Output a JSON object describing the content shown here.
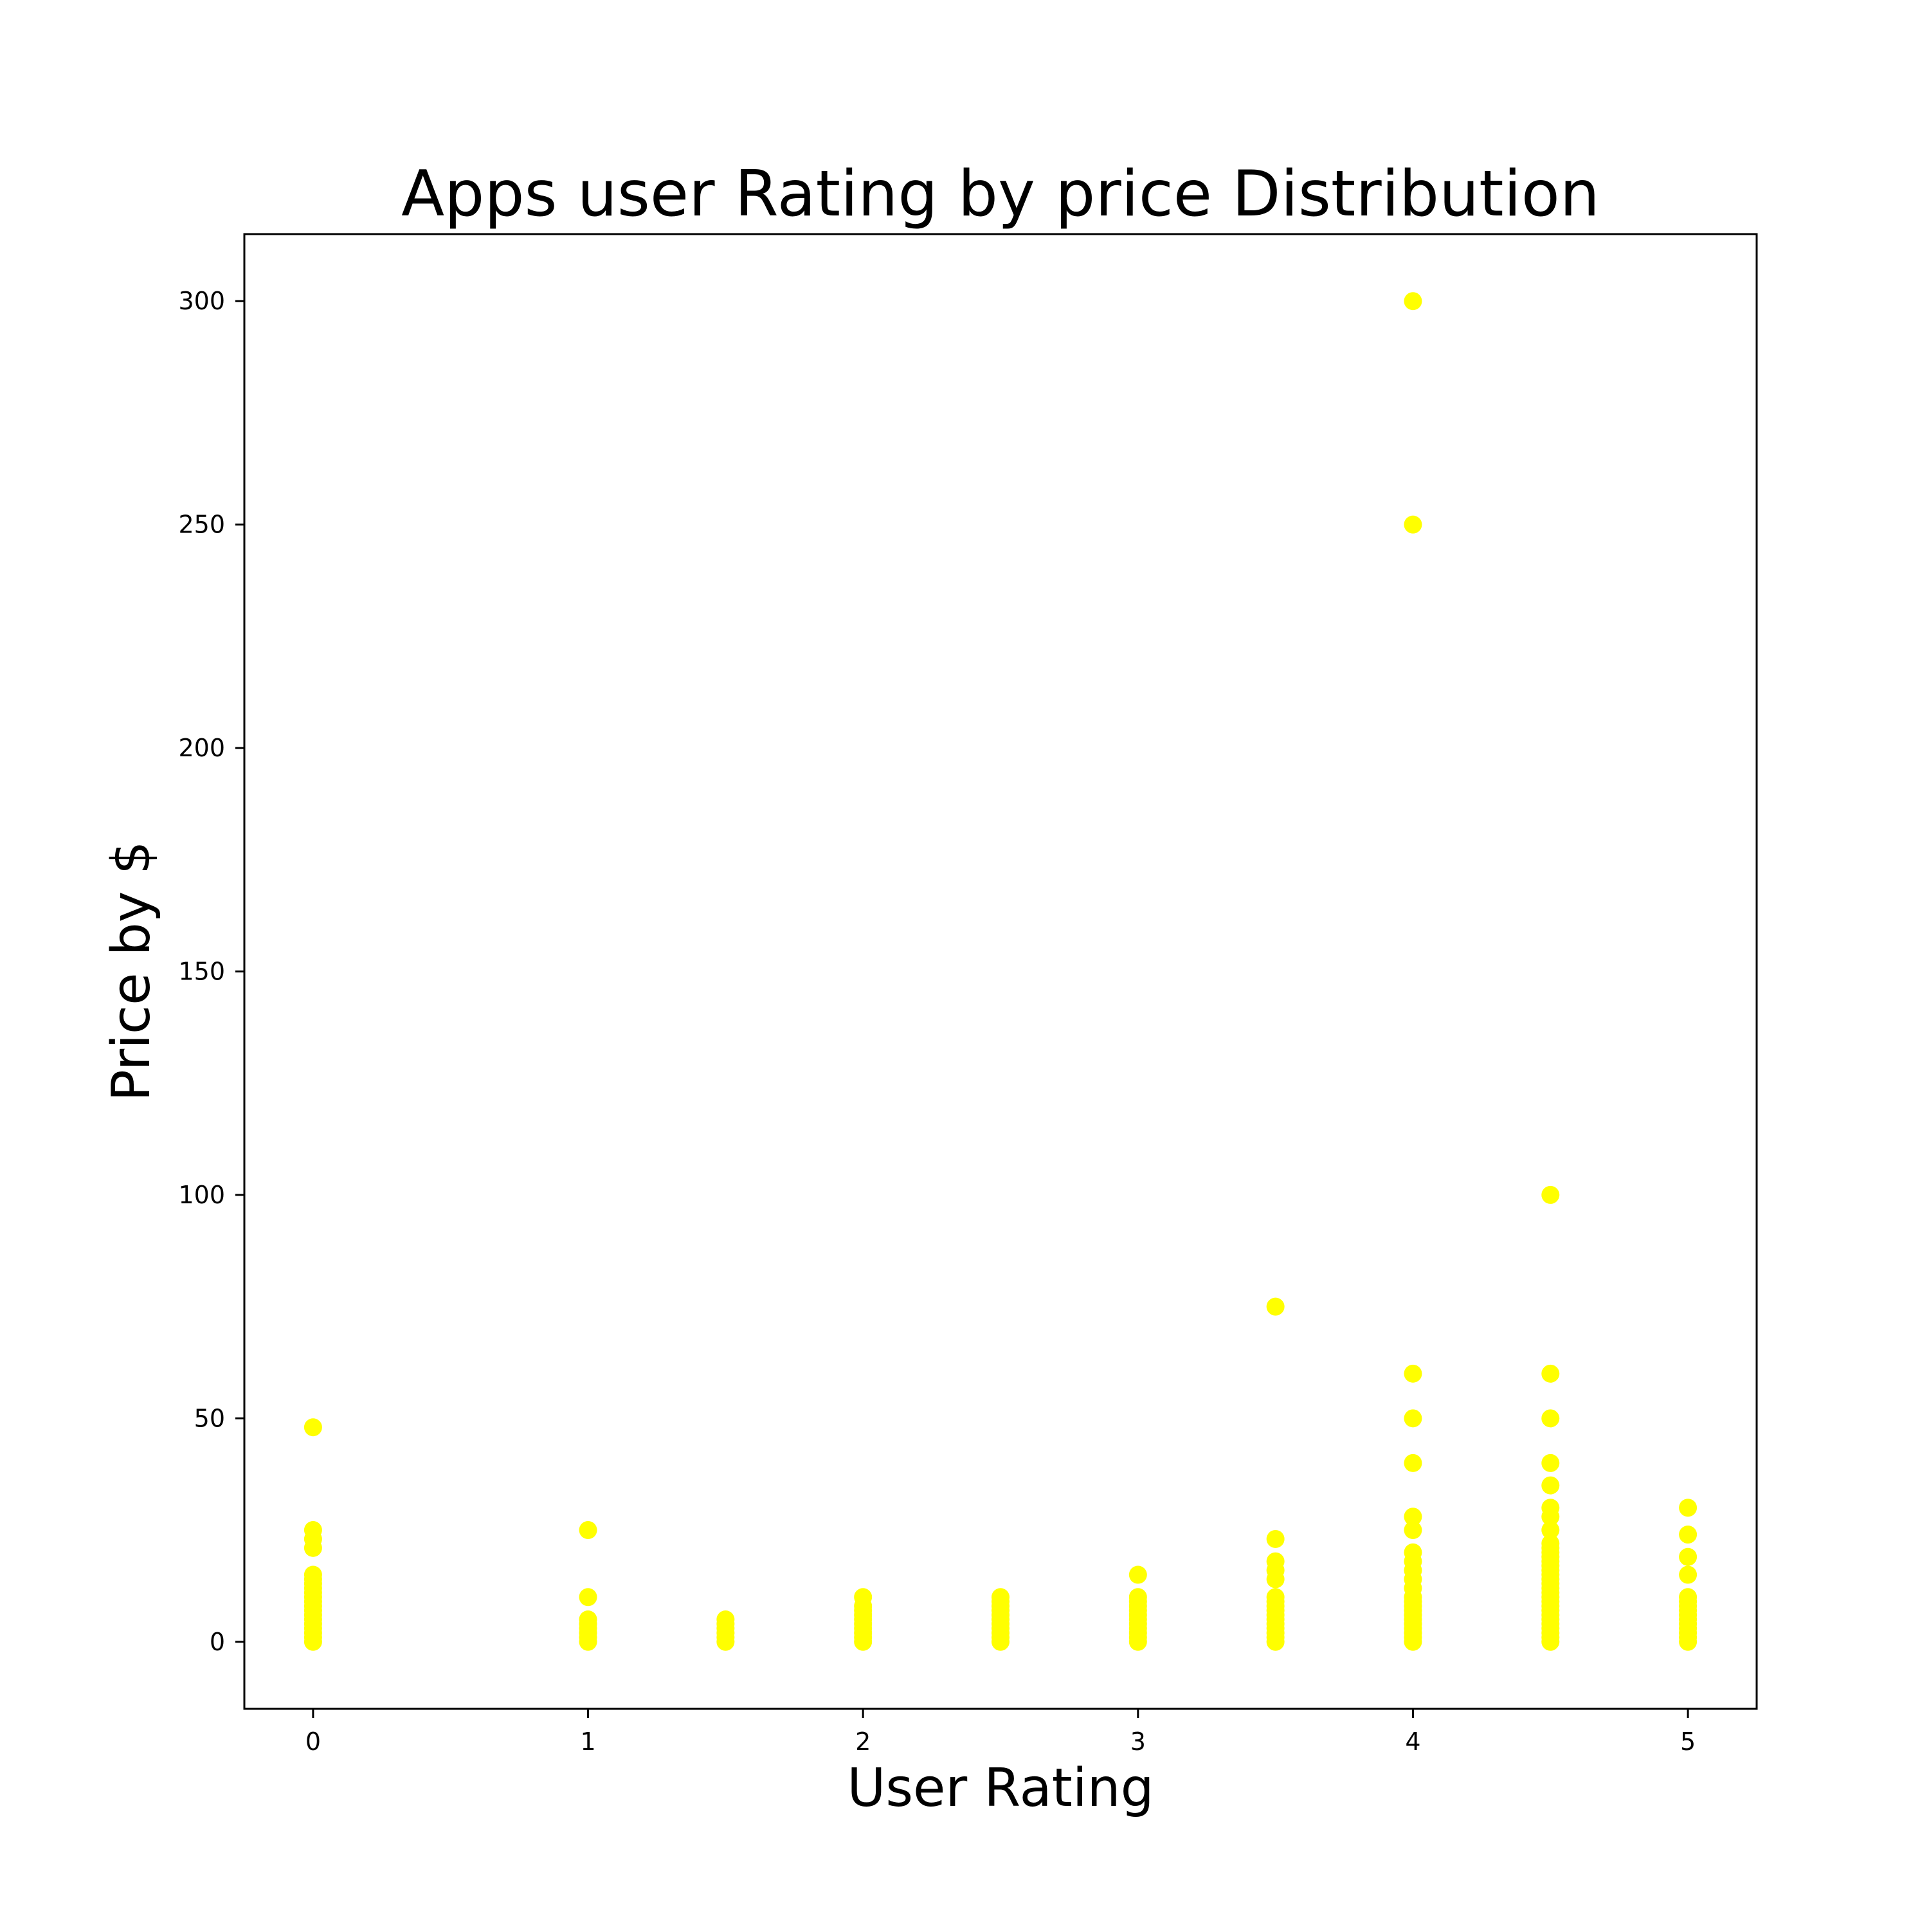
{
  "chart_data": {
    "type": "scatter",
    "title": "Apps user Rating by price Distribution",
    "xlabel": "User Rating",
    "ylabel": "Price by $",
    "xlim": [
      -0.25,
      5.25
    ],
    "ylim": [
      -15,
      315
    ],
    "xticks": [
      0,
      1,
      2,
      3,
      4,
      5
    ],
    "yticks": [
      0,
      50,
      100,
      150,
      200,
      250,
      300
    ],
    "xtick_labels": [
      "0",
      "1",
      "2",
      "3",
      "4",
      "5"
    ],
    "ytick_labels": [
      "0",
      "50",
      "100",
      "150",
      "200",
      "250",
      "300"
    ],
    "grid": false,
    "legend": null,
    "marker_color": "#ffff00",
    "axis_color": "#000000",
    "background": "#ffffff",
    "series": [
      {
        "points": [
          [
            0,
            0
          ],
          [
            0,
            1
          ],
          [
            0,
            2
          ],
          [
            0,
            3
          ],
          [
            0,
            4
          ],
          [
            0,
            5
          ],
          [
            0,
            6
          ],
          [
            0,
            7
          ],
          [
            0,
            8
          ],
          [
            0,
            9
          ],
          [
            0,
            10
          ],
          [
            0,
            11
          ],
          [
            0,
            12
          ],
          [
            0,
            13
          ],
          [
            0,
            14
          ],
          [
            0,
            15
          ],
          [
            0,
            21
          ],
          [
            0,
            23
          ],
          [
            0,
            25
          ],
          [
            0,
            48
          ],
          [
            1,
            0
          ],
          [
            1,
            1
          ],
          [
            1,
            2
          ],
          [
            1,
            3
          ],
          [
            1,
            4
          ],
          [
            1,
            5
          ],
          [
            1,
            10
          ],
          [
            1,
            25
          ],
          [
            1.5,
            0
          ],
          [
            1.5,
            1
          ],
          [
            1.5,
            2
          ],
          [
            1.5,
            3
          ],
          [
            1.5,
            4
          ],
          [
            1.5,
            5
          ],
          [
            2,
            0
          ],
          [
            2,
            1
          ],
          [
            2,
            2
          ],
          [
            2,
            3
          ],
          [
            2,
            4
          ],
          [
            2,
            5
          ],
          [
            2,
            6
          ],
          [
            2,
            7
          ],
          [
            2,
            8
          ],
          [
            2,
            10
          ],
          [
            2.5,
            0
          ],
          [
            2.5,
            1
          ],
          [
            2.5,
            2
          ],
          [
            2.5,
            3
          ],
          [
            2.5,
            4
          ],
          [
            2.5,
            5
          ],
          [
            2.5,
            6
          ],
          [
            2.5,
            7
          ],
          [
            2.5,
            8
          ],
          [
            2.5,
            9
          ],
          [
            2.5,
            10
          ],
          [
            3,
            0
          ],
          [
            3,
            1
          ],
          [
            3,
            2
          ],
          [
            3,
            3
          ],
          [
            3,
            4
          ],
          [
            3,
            5
          ],
          [
            3,
            6
          ],
          [
            3,
            7
          ],
          [
            3,
            8
          ],
          [
            3,
            9
          ],
          [
            3,
            10
          ],
          [
            3,
            15
          ],
          [
            3.5,
            0
          ],
          [
            3.5,
            1
          ],
          [
            3.5,
            2
          ],
          [
            3.5,
            3
          ],
          [
            3.5,
            4
          ],
          [
            3.5,
            5
          ],
          [
            3.5,
            6
          ],
          [
            3.5,
            7
          ],
          [
            3.5,
            8
          ],
          [
            3.5,
            9
          ],
          [
            3.5,
            10
          ],
          [
            3.5,
            14
          ],
          [
            3.5,
            16
          ],
          [
            3.5,
            18
          ],
          [
            3.5,
            23
          ],
          [
            3.5,
            75
          ],
          [
            4,
            0
          ],
          [
            4,
            1
          ],
          [
            4,
            2
          ],
          [
            4,
            3
          ],
          [
            4,
            4
          ],
          [
            4,
            5
          ],
          [
            4,
            6
          ],
          [
            4,
            7
          ],
          [
            4,
            8
          ],
          [
            4,
            9
          ],
          [
            4,
            10
          ],
          [
            4,
            12
          ],
          [
            4,
            14
          ],
          [
            4,
            16
          ],
          [
            4,
            18
          ],
          [
            4,
            20
          ],
          [
            4,
            25
          ],
          [
            4,
            28
          ],
          [
            4,
            40
          ],
          [
            4,
            50
          ],
          [
            4,
            60
          ],
          [
            4,
            250
          ],
          [
            4,
            300
          ],
          [
            4.5,
            0
          ],
          [
            4.5,
            1
          ],
          [
            4.5,
            2
          ],
          [
            4.5,
            3
          ],
          [
            4.5,
            4
          ],
          [
            4.5,
            5
          ],
          [
            4.5,
            6
          ],
          [
            4.5,
            7
          ],
          [
            4.5,
            8
          ],
          [
            4.5,
            9
          ],
          [
            4.5,
            10
          ],
          [
            4.5,
            11
          ],
          [
            4.5,
            12
          ],
          [
            4.5,
            13
          ],
          [
            4.5,
            14
          ],
          [
            4.5,
            15
          ],
          [
            4.5,
            16
          ],
          [
            4.5,
            17
          ],
          [
            4.5,
            18
          ],
          [
            4.5,
            19
          ],
          [
            4.5,
            20
          ],
          [
            4.5,
            21
          ],
          [
            4.5,
            22
          ],
          [
            4.5,
            25
          ],
          [
            4.5,
            28
          ],
          [
            4.5,
            30
          ],
          [
            4.5,
            35
          ],
          [
            4.5,
            40
          ],
          [
            4.5,
            50
          ],
          [
            4.5,
            60
          ],
          [
            4.5,
            100
          ],
          [
            5,
            0
          ],
          [
            5,
            1
          ],
          [
            5,
            2
          ],
          [
            5,
            3
          ],
          [
            5,
            4
          ],
          [
            5,
            5
          ],
          [
            5,
            6
          ],
          [
            5,
            7
          ],
          [
            5,
            8
          ],
          [
            5,
            9
          ],
          [
            5,
            10
          ],
          [
            5,
            15
          ],
          [
            5,
            19
          ],
          [
            5,
            24
          ],
          [
            5,
            30
          ]
        ]
      }
    ]
  }
}
